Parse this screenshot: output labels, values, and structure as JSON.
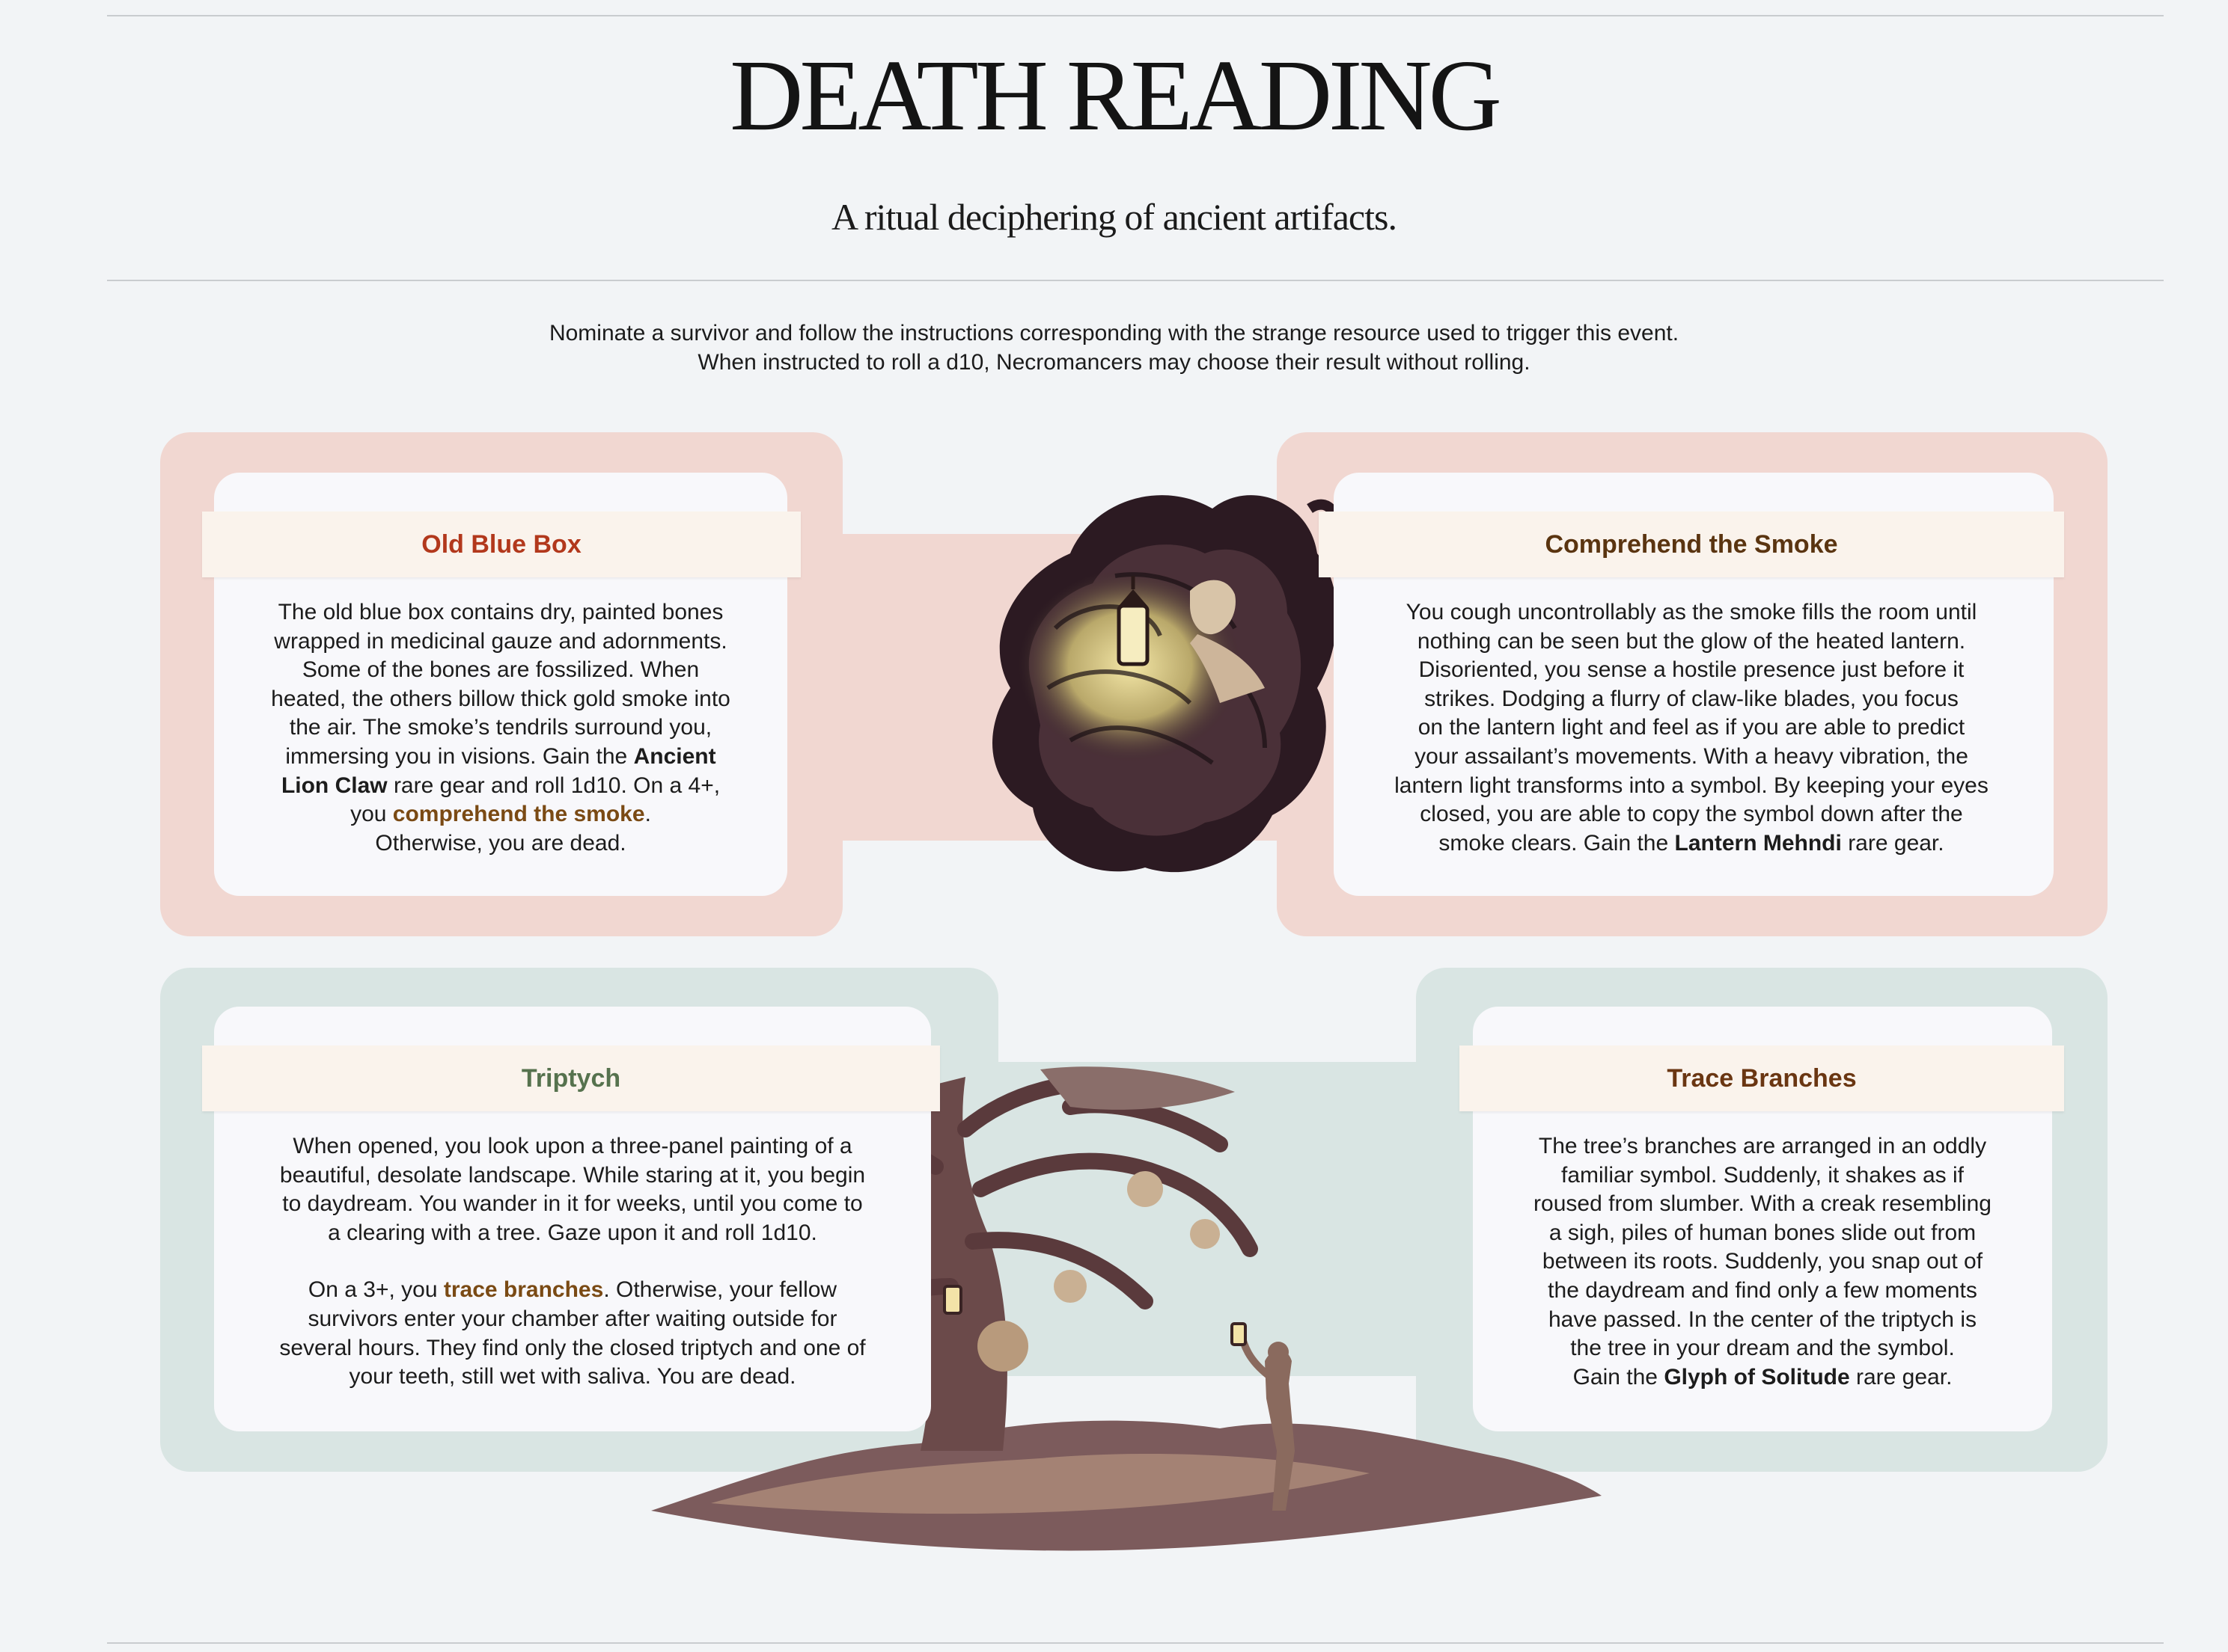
{
  "header": {
    "title": "DEATH READING",
    "subtitle": "A ritual deciphering of ancient artifacts."
  },
  "instructions": {
    "line1": "Nominate a survivor and follow the instructions corresponding with the strange resource used to trigger this event.",
    "line2": "When instructed to roll a d10, Necromancers may choose their result without rolling."
  },
  "colors": {
    "pink_panel": "#f1d7d1",
    "sage_panel": "#d9e5e3",
    "old_blue_box_title": "#b2381c",
    "comprehend_title": "#5a3410",
    "triptych_title": "#56724e",
    "trace_title": "#6a3612",
    "highlight_text": "#7a4a14"
  },
  "cards": {
    "old_blue_box": {
      "title": "Old Blue Box",
      "l1": "The old blue box contains dry, painted bones",
      "l2": "wrapped in medicinal gauze and adornments.",
      "l3": "Some of the bones are fossilized. When",
      "l4": "heated, the others billow thick gold smoke into",
      "l5": "the air. The smoke’s tendrils surround you,",
      "l6a": "immersing you in visions. Gain the ",
      "l6b": "Ancient",
      "l7a": "Lion Claw",
      "l7b": " rare gear and roll 1d10. On a 4+,",
      "l8a": "you ",
      "l8b": "comprehend the smoke",
      "l8c": ".",
      "l9": "Otherwise, you are dead."
    },
    "comprehend": {
      "title": "Comprehend the Smoke",
      "l1": "You cough uncontrollably as the smoke fills the room until",
      "l2": "nothing can be seen but the glow of the heated lantern.",
      "l3": "Disoriented, you sense a hostile presence just before it",
      "l4": "strikes. Dodging a flurry of claw-like blades, you focus",
      "l5": "on the lantern light and feel as if you are able to predict",
      "l6": "your assailant’s movements. With a heavy vibration, the",
      "l7": "lantern light transforms into a symbol. By keeping your eyes",
      "l8": "closed, you are able to copy the symbol down after the",
      "l9a": "smoke clears. Gain the ",
      "l9b": "Lantern Mehndi",
      "l9c": " rare gear."
    },
    "triptych": {
      "title": "Triptych",
      "l1": "When opened, you look upon a three-panel painting of a",
      "l2": "beautiful, desolate landscape. While staring at it, you begin",
      "l3": "to daydream. You wander in it for weeks, until you come to",
      "l4": "a clearing with a tree. Gaze upon it and roll 1d10.",
      "l5a": "On a 3+, you ",
      "l5b": "trace branches",
      "l5c": ". Otherwise, your fellow",
      "l6": "survivors enter your chamber after waiting outside for",
      "l7": "several hours. They find only the closed triptych and one of",
      "l8": "your teeth, still wet with saliva. You are dead."
    },
    "trace": {
      "title": "Trace Branches",
      "l1": "The tree’s branches are arranged in an oddly",
      "l2": "familiar symbol. Suddenly, it shakes as if",
      "l3": "roused from slumber. With a creak resembling",
      "l4": "a sigh, piles of human bones slide out from",
      "l5": "between its roots. Suddenly, you snap out of",
      "l6": "the daydream and find only a few moments",
      "l7": "have passed. In the center of the triptych is",
      "l8": "the tree in your dream and the symbol.",
      "l9a": "Gain the ",
      "l9b": "Glyph of Solitude",
      "l9c": " rare gear."
    }
  }
}
